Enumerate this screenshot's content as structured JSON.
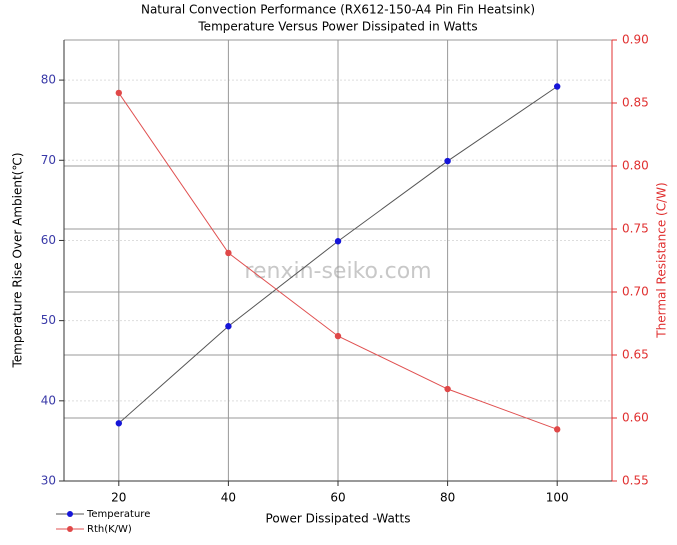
{
  "chart_data": {
    "type": "line",
    "title": "Natural Convection Performance  (RX612-150-A4  Pin Fin Heatsink)",
    "subtitle": "Temperature Versus Power Dissipated in Watts",
    "x_label": "Power Dissipated -Watts",
    "y_label": "Temperature Rise Over Ambient(℃)",
    "y2_label": "Thermal Resistance (C/W)",
    "watermark": "renxin-seiko.com",
    "x": [
      20,
      40,
      60,
      80,
      100
    ],
    "xlim": [
      10,
      110
    ],
    "xticks": [
      20,
      40,
      60,
      80,
      100
    ],
    "ylim": [
      30,
      85
    ],
    "yticks": [
      30,
      40,
      50,
      60,
      70,
      80
    ],
    "y2lim": [
      0.55,
      0.9
    ],
    "y2ticks": [
      {
        "value": 0.55,
        "label": "0.55"
      },
      {
        "value": 0.6,
        "label": "0.60"
      },
      {
        "value": 0.65,
        "label": "0.65"
      },
      {
        "value": 0.7,
        "label": "0.70"
      },
      {
        "value": 0.75,
        "label": "0.75"
      },
      {
        "value": 0.8,
        "label": "0.80"
      },
      {
        "value": 0.85,
        "label": "0.85"
      },
      {
        "value": 0.9,
        "label": "0.90"
      }
    ],
    "grid": true,
    "legend": "bottom-left",
    "series": [
      {
        "name": "Temperature",
        "color": "#1515d8",
        "line_color": "#555555",
        "values": [
          37.2,
          49.3,
          59.9,
          69.9,
          79.2
        ]
      },
      {
        "name": "Rth(K/W)",
        "color": "#e04848",
        "line_color": "#e05050",
        "axis": "y2",
        "values": [
          0.858,
          0.731,
          0.665,
          0.623,
          0.591
        ]
      }
    ]
  }
}
